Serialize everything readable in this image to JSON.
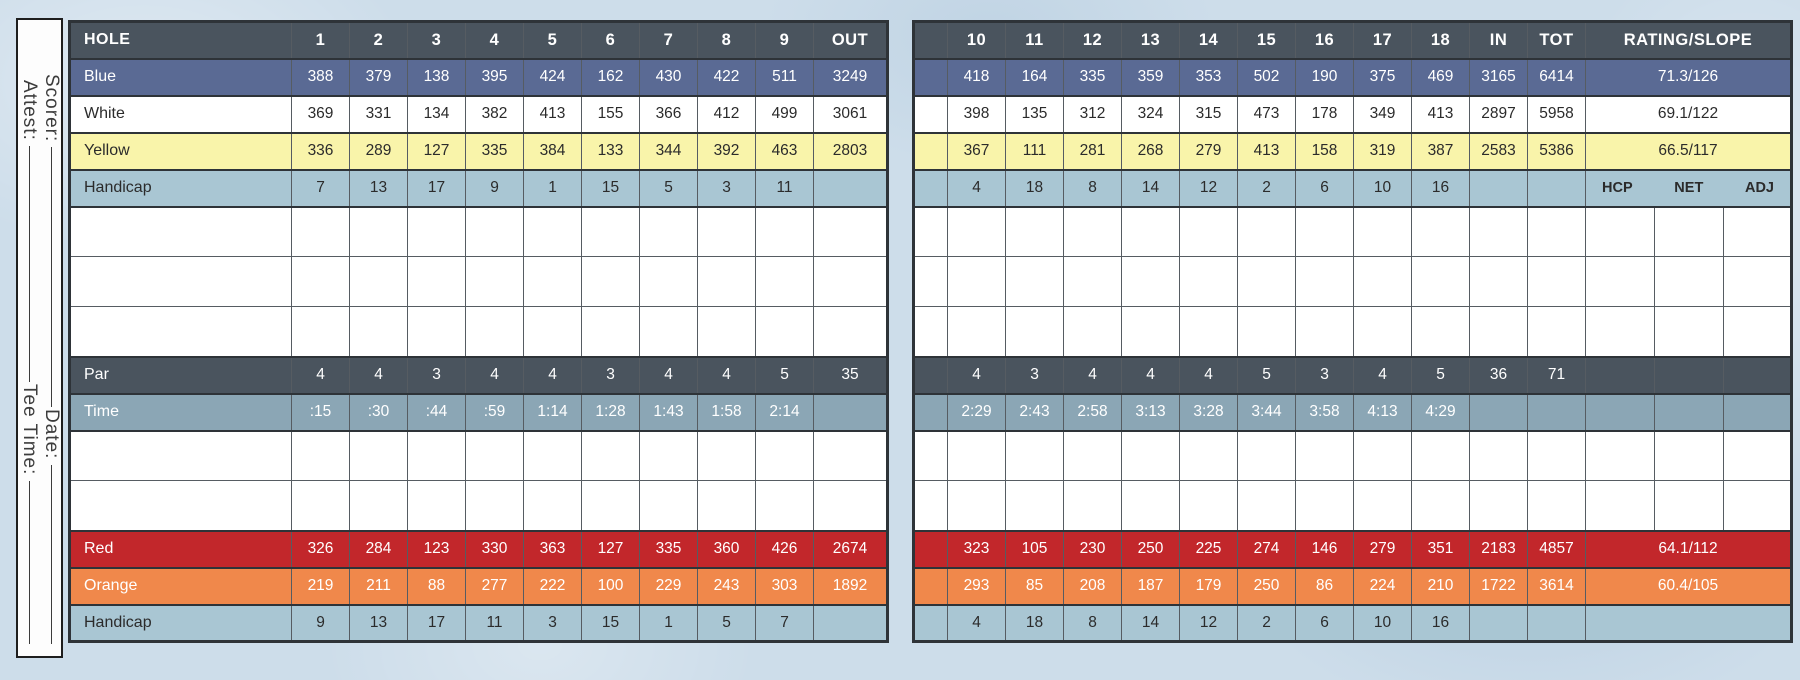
{
  "scorecard": {
    "sidebar": {
      "scorer": "Scorer:",
      "attest": "Attest:",
      "date": "Date:",
      "tee_time": "Tee Time:"
    },
    "colors": {
      "header_dark": "#4a545e",
      "blue_tee": "#5a6a94",
      "white_tee": "#ffffff",
      "yellow_tee": "#f9f4aa",
      "handicap_row": "#a9c6d3",
      "time_row": "#8ba6b5",
      "red_tee": "#c2272b",
      "orange_tee": "#f0884b",
      "background": "#cdddea"
    },
    "front_table": {
      "header": {
        "label": "HOLE",
        "holes": [
          "1",
          "2",
          "3",
          "4",
          "5",
          "6",
          "7",
          "8",
          "9"
        ],
        "total": "OUT"
      },
      "rows": [
        {
          "id": "blue",
          "label": "Blue",
          "style": "blue",
          "values": [
            "388",
            "379",
            "138",
            "395",
            "424",
            "162",
            "430",
            "422",
            "511"
          ],
          "total": "3249"
        },
        {
          "id": "white",
          "label": "White",
          "style": "white",
          "values": [
            "369",
            "331",
            "134",
            "382",
            "413",
            "155",
            "366",
            "412",
            "499"
          ],
          "total": "3061"
        },
        {
          "id": "yellow",
          "label": "Yellow",
          "style": "yellow",
          "values": [
            "336",
            "289",
            "127",
            "335",
            "384",
            "133",
            "344",
            "392",
            "463"
          ],
          "total": "2803"
        },
        {
          "id": "handicap-top",
          "label": "Handicap",
          "style": "handicap",
          "values": [
            "7",
            "13",
            "17",
            "9",
            "1",
            "15",
            "5",
            "3",
            "11"
          ],
          "total": ""
        },
        {
          "id": "score-row-1",
          "style": "empty"
        },
        {
          "id": "score-row-2",
          "style": "empty"
        },
        {
          "id": "score-row-3",
          "style": "empty"
        },
        {
          "id": "par",
          "label": "Par",
          "style": "par",
          "values": [
            "4",
            "4",
            "3",
            "4",
            "4",
            "3",
            "4",
            "4",
            "5"
          ],
          "total": "35"
        },
        {
          "id": "time",
          "label": "Time",
          "style": "time",
          "values": [
            ":15",
            ":30",
            ":44",
            ":59",
            "1:14",
            "1:28",
            "1:43",
            "1:58",
            "2:14"
          ],
          "total": ""
        },
        {
          "id": "score-row-4",
          "style": "empty"
        },
        {
          "id": "score-row-5",
          "style": "empty"
        },
        {
          "id": "red",
          "label": "Red",
          "style": "red",
          "values": [
            "326",
            "284",
            "123",
            "330",
            "363",
            "127",
            "335",
            "360",
            "426"
          ],
          "total": "2674"
        },
        {
          "id": "orange",
          "label": "Orange",
          "style": "orange",
          "values": [
            "219",
            "211",
            "88",
            "277",
            "222",
            "100",
            "229",
            "243",
            "303"
          ],
          "total": "1892"
        },
        {
          "id": "handicap-bottom",
          "label": "Handicap",
          "style": "handicap",
          "values": [
            "9",
            "13",
            "17",
            "11",
            "3",
            "15",
            "1",
            "5",
            "7"
          ],
          "total": ""
        }
      ]
    },
    "back_table": {
      "header": {
        "holes": [
          "10",
          "11",
          "12",
          "13",
          "14",
          "15",
          "16",
          "17",
          "18"
        ],
        "in": "IN",
        "tot": "TOT",
        "rating": "RATING/SLOPE"
      },
      "hcp_labels": [
        "HCP",
        "NET",
        "ADJ"
      ],
      "rows": [
        {
          "id": "blue",
          "style": "blue",
          "values": [
            "418",
            "164",
            "335",
            "359",
            "353",
            "502",
            "190",
            "375",
            "469"
          ],
          "in": "3165",
          "tot": "6414",
          "rating": "71.3/126",
          "rating_type": "merged"
        },
        {
          "id": "white",
          "style": "white",
          "values": [
            "398",
            "135",
            "312",
            "324",
            "315",
            "473",
            "178",
            "349",
            "413"
          ],
          "in": "2897",
          "tot": "5958",
          "rating": "69.1/122",
          "rating_type": "merged"
        },
        {
          "id": "yellow",
          "style": "yellow",
          "values": [
            "367",
            "111",
            "281",
            "268",
            "279",
            "413",
            "158",
            "319",
            "387"
          ],
          "in": "2583",
          "tot": "5386",
          "rating": "66.5/117",
          "rating_type": "merged"
        },
        {
          "id": "handicap-top",
          "style": "handicap",
          "values": [
            "4",
            "18",
            "8",
            "14",
            "12",
            "2",
            "6",
            "10",
            "16"
          ],
          "in": "",
          "tot": "",
          "rating_type": "labels"
        },
        {
          "id": "score-row-1",
          "style": "empty",
          "rating_type": "split"
        },
        {
          "id": "score-row-2",
          "style": "empty",
          "rating_type": "split"
        },
        {
          "id": "score-row-3",
          "style": "empty",
          "rating_type": "split"
        },
        {
          "id": "par",
          "style": "par",
          "values": [
            "4",
            "3",
            "4",
            "4",
            "4",
            "5",
            "3",
            "4",
            "5"
          ],
          "in": "36",
          "tot": "71",
          "rating_type": "split"
        },
        {
          "id": "time",
          "style": "time",
          "values": [
            "2:29",
            "2:43",
            "2:58",
            "3:13",
            "3:28",
            "3:44",
            "3:58",
            "4:13",
            "4:29"
          ],
          "in": "",
          "tot": "",
          "rating_type": "split"
        },
        {
          "id": "score-row-4",
          "style": "empty",
          "rating_type": "split"
        },
        {
          "id": "score-row-5",
          "style": "empty",
          "rating_type": "split"
        },
        {
          "id": "red",
          "style": "red",
          "values": [
            "323",
            "105",
            "230",
            "250",
            "225",
            "274",
            "146",
            "279",
            "351"
          ],
          "in": "2183",
          "tot": "4857",
          "rating": "64.1/112",
          "rating_type": "merged"
        },
        {
          "id": "orange",
          "style": "orange",
          "values": [
            "293",
            "85",
            "208",
            "187",
            "179",
            "250",
            "86",
            "224",
            "210"
          ],
          "in": "1722",
          "tot": "3614",
          "rating": "60.4/105",
          "rating_type": "merged"
        },
        {
          "id": "handicap-bottom",
          "style": "handicap",
          "values": [
            "4",
            "18",
            "8",
            "14",
            "12",
            "2",
            "6",
            "10",
            "16"
          ],
          "in": "",
          "tot": "",
          "rating": "",
          "rating_type": "merged"
        }
      ]
    }
  }
}
